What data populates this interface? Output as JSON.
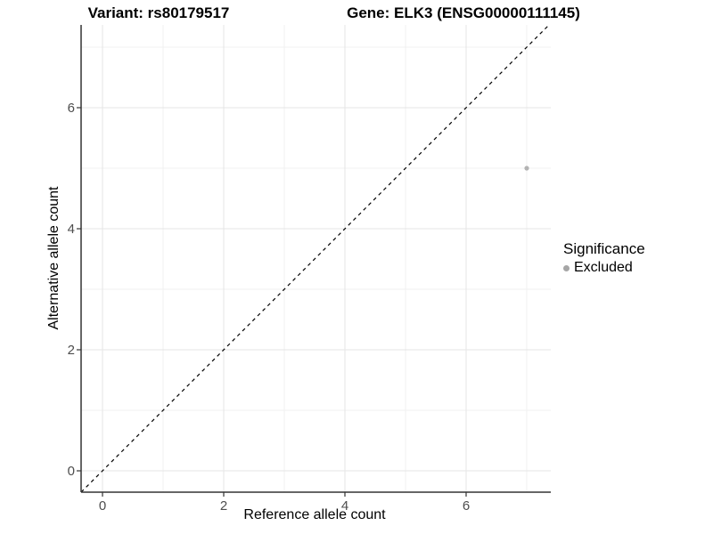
{
  "titles": {
    "variant": "Variant: rs80179517",
    "gene": "Gene: ELK3 (ENSG00000111145)"
  },
  "chart_data": {
    "type": "scatter",
    "xlabel": "Reference allele count",
    "ylabel": "Alternative allele count",
    "xlim": [
      -0.37,
      7.4
    ],
    "ylim": [
      -0.35,
      7.37
    ],
    "x_major_ticks": [
      0,
      2,
      4,
      6
    ],
    "x_minor_gridlines": [
      1,
      3,
      5,
      7
    ],
    "y_major_ticks": [
      0,
      2,
      4,
      6
    ],
    "y_minor_gridlines": [
      1,
      3,
      5,
      7
    ],
    "grid": true,
    "points": [
      {
        "x": 7,
        "y": 5,
        "significance": "Excluded"
      }
    ],
    "reference_line": {
      "slope": 1,
      "intercept": 0,
      "linetype": "dashed"
    },
    "legend": {
      "position": "right",
      "title": "Significance",
      "items": [
        {
          "label": "Excluded",
          "color": "#a6a6a6"
        }
      ]
    },
    "colors": {
      "background": "#ffffff",
      "gridline_major": "#e5e5e5",
      "gridline_minor": "#f0f0f0",
      "axis_line": "#333333",
      "tick_mark": "#333333",
      "tick_label": "#4d4d4d",
      "point": "#b3b3b3",
      "reference_line": "#000000"
    }
  }
}
